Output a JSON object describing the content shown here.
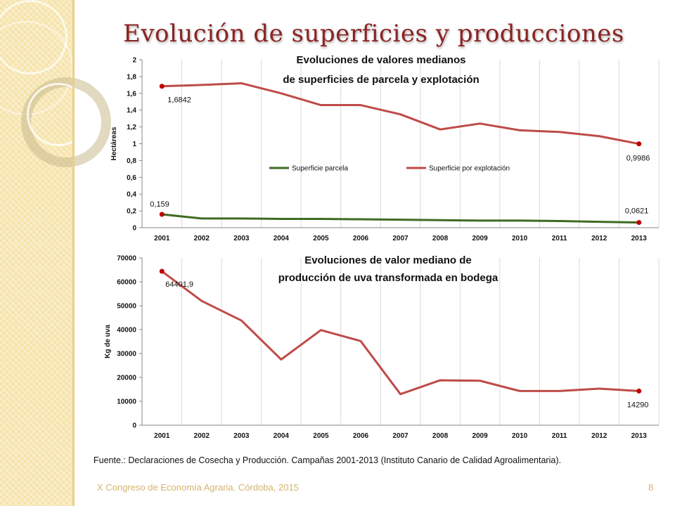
{
  "slide": {
    "title": "Evolución de superficies y producciones",
    "source": "Fuente.: Declaraciones de Cosecha y Producción. Campañas 2001-2013 (Instituto Canario de Calidad Agroalimentaria).",
    "footer": "X Congreso de Economía Agraria. Córdoba, 2015",
    "page_number": "8"
  },
  "chart_data": [
    {
      "type": "line",
      "title": [
        "Evoluciones de valores medianos",
        "de superficies de parcela y explotación"
      ],
      "ylabel": "Hectáreas",
      "xlabel": "",
      "categories": [
        "2001",
        "2002",
        "2003",
        "2004",
        "2005",
        "2006",
        "2007",
        "2008",
        "2009",
        "2010",
        "2011",
        "2012",
        "2013"
      ],
      "ylim": [
        0,
        2
      ],
      "yticks": [
        "0",
        "0,2",
        "0,4",
        "0,6",
        "0,8",
        "1",
        "1,2",
        "1,4",
        "1,6",
        "1,8",
        "2"
      ],
      "legend_position": "middle",
      "series": [
        {
          "name": "Superficie parcela",
          "color": "#3f6b22",
          "values": [
            0.159,
            0.11,
            0.11,
            0.105,
            0.105,
            0.1,
            0.095,
            0.09,
            0.085,
            0.085,
            0.08,
            0.07,
            0.0621
          ],
          "point_labels": {
            "0": "0,159",
            "12": "0,0621"
          }
        },
        {
          "name": "Superficie por explotación",
          "color": "#be4b48",
          "values": [
            1.6842,
            1.7,
            1.72,
            1.6,
            1.46,
            1.46,
            1.35,
            1.17,
            1.24,
            1.16,
            1.14,
            1.09,
            0.9986
          ],
          "point_labels": {
            "0": "1,6842",
            "12": "0,9986"
          }
        }
      ],
      "marker_color": "#c00000"
    },
    {
      "type": "line",
      "title": [
        "Evoluciones de valor mediano de",
        "producción de uva transformada en bodega"
      ],
      "ylabel": "Kg de uva",
      "xlabel": "",
      "categories": [
        "2001",
        "2002",
        "2003",
        "2004",
        "2005",
        "2006",
        "2007",
        "2008",
        "2009",
        "2010",
        "2011",
        "2012",
        "2013"
      ],
      "ylim": [
        0,
        70000
      ],
      "yticks": [
        "0",
        "10000",
        "20000",
        "30000",
        "40000",
        "50000",
        "60000",
        "70000"
      ],
      "series": [
        {
          "name": "",
          "color": "#be4b48",
          "values": [
            64401.9,
            52000,
            43800,
            27500,
            39800,
            35200,
            13000,
            18800,
            18600,
            14300,
            14300,
            15300,
            14290
          ],
          "point_labels": {
            "0": "64401,9",
            "12": "14290"
          }
        }
      ],
      "marker_color": "#c00000"
    }
  ]
}
